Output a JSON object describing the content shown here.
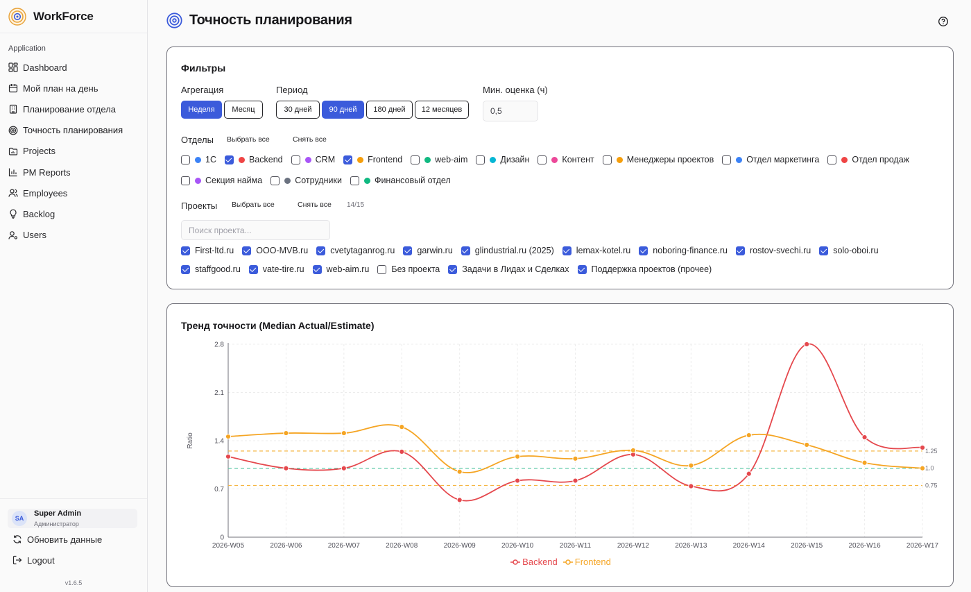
{
  "app": {
    "name": "WorkForce"
  },
  "sidebar": {
    "group_label": "Application",
    "items": [
      {
        "label": "Dashboard",
        "icon": "dashboard-icon"
      },
      {
        "label": "Мой план на день",
        "icon": "calendar-icon"
      },
      {
        "label": "Планирование отдела",
        "icon": "building-icon"
      },
      {
        "label": "Точность планирования",
        "icon": "target-icon"
      },
      {
        "label": "Projects",
        "icon": "folder-icon"
      },
      {
        "label": "PM Reports",
        "icon": "bar-chart-icon"
      },
      {
        "label": "Employees",
        "icon": "users-icon"
      },
      {
        "label": "Backlog",
        "icon": "lightbulb-icon"
      },
      {
        "label": "Users",
        "icon": "user-cog-icon"
      }
    ],
    "user": {
      "initials": "SA",
      "name": "Super Admin",
      "role": "Администратор"
    },
    "refresh_label": "Обновить данные",
    "logout_label": "Logout",
    "version": "v1.6.5"
  },
  "page": {
    "title": "Точность планирования"
  },
  "filters": {
    "title": "Фильтры",
    "aggregation": {
      "label": "Агрегация",
      "options": [
        "Неделя",
        "Месяц"
      ],
      "selected": "Неделя"
    },
    "period": {
      "label": "Период",
      "options": [
        "30 дней",
        "90 дней",
        "180 дней",
        "12 месяцев"
      ],
      "selected": "90 дней"
    },
    "min_estimate": {
      "label": "Мин. оценка (ч)",
      "value": "0,5"
    },
    "departments": {
      "label": "Отделы",
      "select_all": "Выбрать все",
      "clear_all": "Снять все",
      "items": [
        {
          "label": "1С",
          "color": "#3b82f6",
          "checked": false
        },
        {
          "label": "Backend",
          "color": "#ef4444",
          "checked": true
        },
        {
          "label": "CRM",
          "color": "#a855f7",
          "checked": false
        },
        {
          "label": "Frontend",
          "color": "#f59e0b",
          "checked": true
        },
        {
          "label": "web-aim",
          "color": "#10b981",
          "checked": false
        },
        {
          "label": "Дизайн",
          "color": "#06b6d4",
          "checked": false
        },
        {
          "label": "Контент",
          "color": "#ec4899",
          "checked": false
        },
        {
          "label": "Менеджеры проектов",
          "color": "#f59e0b",
          "checked": false
        },
        {
          "label": "Отдел маркетинга",
          "color": "#3b82f6",
          "checked": false
        },
        {
          "label": "Отдел продаж",
          "color": "#ef4444",
          "checked": false
        },
        {
          "label": "Секция найма",
          "color": "#a855f7",
          "checked": false
        },
        {
          "label": "Сотрудники",
          "color": "#6b7280",
          "checked": false
        },
        {
          "label": "Финансовый отдел",
          "color": "#10b981",
          "checked": false
        }
      ]
    },
    "projects": {
      "label": "Проекты",
      "select_all": "Выбрать все",
      "clear_all": "Снять все",
      "count": "14/15",
      "search_placeholder": "Поиск проекта...",
      "items": [
        {
          "label": "First-ltd.ru",
          "checked": true
        },
        {
          "label": "OOO-MVB.ru",
          "checked": true
        },
        {
          "label": "cvetytaganrog.ru",
          "checked": true
        },
        {
          "label": "garwin.ru",
          "checked": true
        },
        {
          "label": "glindustrial.ru (2025)",
          "checked": true
        },
        {
          "label": "lemax-kotel.ru",
          "checked": true
        },
        {
          "label": "noboring-finance.ru",
          "checked": true
        },
        {
          "label": "rostov-svechi.ru",
          "checked": true
        },
        {
          "label": "solo-oboi.ru",
          "checked": true
        },
        {
          "label": "staffgood.ru",
          "checked": true
        },
        {
          "label": "vate-tire.ru",
          "checked": true
        },
        {
          "label": "web-aim.ru",
          "checked": true
        },
        {
          "label": "Без проекта",
          "checked": false
        },
        {
          "label": "Задачи в Лидах и Сделках",
          "checked": true
        },
        {
          "label": "Поддержка проектов (прочее)",
          "checked": true
        }
      ]
    }
  },
  "chart_data": {
    "type": "line",
    "title": "Тренд точности (Median Actual/Estimate)",
    "ylabel": "Ratio",
    "ylim": [
      0,
      2.8
    ],
    "yticks": [
      "0",
      "0.7",
      "1.4",
      "2.1",
      "2.8"
    ],
    "x": [
      "2026-W05",
      "2026-W06",
      "2026-W07",
      "2026-W08",
      "2026-W09",
      "2026-W10",
      "2026-W11",
      "2026-W12",
      "2026-W13",
      "2026-W14",
      "2026-W15",
      "2026-W16",
      "2026-W17"
    ],
    "series": [
      {
        "name": "Backend",
        "color": "#e5484d",
        "values": [
          1.17,
          1.0,
          1.0,
          1.24,
          0.54,
          0.82,
          0.82,
          1.2,
          0.74,
          0.92,
          2.8,
          1.45,
          1.3
        ]
      },
      {
        "name": "Frontend",
        "color": "#f5a524",
        "values": [
          1.46,
          1.51,
          1.51,
          1.6,
          0.95,
          1.17,
          1.14,
          1.26,
          1.04,
          1.48,
          1.34,
          1.08,
          1.0
        ]
      }
    ],
    "reference_lines": [
      {
        "value": 1.25,
        "label": "1.25",
        "color": "#f5b642"
      },
      {
        "value": 1.0,
        "label": "1.0",
        "color": "#5ec9a8"
      },
      {
        "value": 0.75,
        "label": "0.75",
        "color": "#f5b642"
      }
    ],
    "grid": true,
    "legend": "bottom"
  }
}
